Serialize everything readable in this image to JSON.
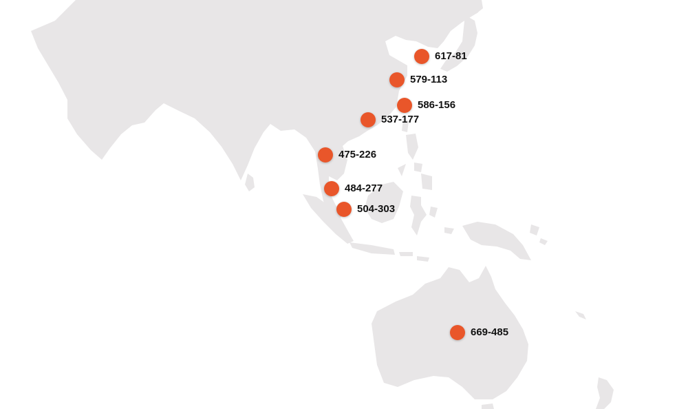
{
  "map": {
    "land_color": "#e8e6e7",
    "marker_color": "#e9562a"
  },
  "markers": [
    {
      "label": "617-81"
    },
    {
      "label": "579-113"
    },
    {
      "label": "586-156"
    },
    {
      "label": "537-177"
    },
    {
      "label": "475-226"
    },
    {
      "label": "484-277"
    },
    {
      "label": "504-303"
    },
    {
      "label": "669-485"
    }
  ]
}
